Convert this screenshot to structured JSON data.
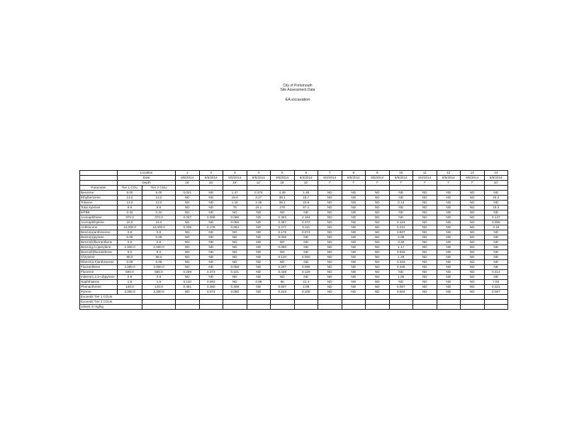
{
  "header": {
    "line1": "City of Portsmouth",
    "line2": "Site Assessment Data",
    "line3": "EA excavation"
  },
  "table": {
    "location_label": "Location",
    "date_label": "Date",
    "depth_label": "Depth",
    "locations": [
      "1",
      "2",
      "3",
      "4",
      "5",
      "6",
      "7",
      "8",
      "9",
      "10",
      "11",
      "12",
      "13",
      "14"
    ],
    "dates": [
      "6/5/2014",
      "6/5/2014",
      "6/5/2014",
      "6/5/2014",
      "6/5/2014",
      "6/4/2014",
      "6/4/2014",
      "6/5/2014",
      "6/5/2014",
      "6/5/2014",
      "6/4/2014",
      "6/5/2014",
      "6/5/2014",
      "6/5/2014"
    ],
    "depths": [
      "15'",
      "15'",
      "15'",
      "12'",
      "15'",
      "15'",
      "7'",
      "7'",
      "7'",
      "7'",
      "7'",
      "7'",
      "7'",
      "10'"
    ],
    "col_headers": [
      "Parameter",
      "Tier 1 CGU",
      "Tier 2 CGU"
    ],
    "rows": [
      {
        "param": "Benzene",
        "t1": "5.00",
        "t2": "5.00",
        "v": [
          "0.021",
          "ND",
          "1.47",
          "0.376",
          "4.39",
          "1.46",
          "ND",
          "ND",
          "ND",
          "ND",
          "ND",
          "ND",
          "ND",
          "ND"
        ]
      },
      {
        "param": "Ethylbenzene",
        "t1": "13.0",
        "t2": "13.0",
        "v": [
          "ND",
          "ND",
          "15.9",
          "3.27",
          "38.1",
          "18.7",
          "ND",
          "ND",
          "ND",
          "ND",
          "ND",
          "ND",
          "ND",
          "26.2"
        ]
      },
      {
        "param": "Toluene",
        "t1": "13.0",
        "t2": "13.0",
        "v": [
          "ND",
          "ND",
          "1.18",
          "4.38",
          "38.1",
          "20.6",
          "ND",
          "ND",
          "ND",
          "0.13",
          "ND",
          "ND",
          "ND",
          "ND"
        ]
      },
      {
        "param": "Total Xylenes",
        "t1": "8.6",
        "t2": "8.6",
        "v": [
          "ND",
          "ND",
          "78",
          "18.1",
          "276",
          "97.2",
          "ND",
          "ND",
          "ND",
          "ND",
          "ND",
          "ND",
          "ND",
          "16.3"
        ]
      },
      {
        "param": "MTBE",
        "t1": "0.32",
        "t2": "0.32",
        "v": [
          "ND",
          "ND",
          "ND",
          "ND",
          "ND",
          "ND",
          "ND",
          "ND",
          "ND",
          "ND",
          "ND",
          "ND",
          "ND",
          "ND"
        ]
      },
      {
        "param": "Acenaphthene",
        "t1": "370.0",
        "t2": "370.0",
        "v": [
          "0.007",
          "0.008",
          "0.089",
          "ND",
          "0.363",
          "2.164",
          "ND",
          "ND",
          "ND",
          "ND",
          "ND",
          "ND",
          "ND",
          "0.147"
        ]
      },
      {
        "param": "Acenaphthylene",
        "t1": "15.0",
        "t2": "15.0",
        "v": [
          "ND",
          "ND",
          "0.096",
          "ND",
          "0.367",
          "0.372",
          "ND",
          "ND",
          "ND",
          "0.124",
          "ND",
          "ND",
          "ND",
          "0.058"
        ]
      },
      {
        "param": "Anthracene",
        "t1": "12,000.0",
        "t2": "12,000.0",
        "v": [
          "0.005",
          "0.178",
          "0.064",
          "ND",
          "0.277",
          "0.111",
          "ND",
          "ND",
          "ND",
          "0.231",
          "ND",
          "ND",
          "ND",
          "3.15"
        ]
      },
      {
        "param": "Benzo(a)anthracene",
        "t1": "0.8",
        "t2": "0.8",
        "v": [
          "ND",
          "ND",
          "ND",
          "ND",
          "0.176",
          "0.074",
          "ND",
          "ND",
          "ND",
          "0.837",
          "ND",
          "ND",
          "ND",
          "ND"
        ]
      },
      {
        "param": "Benzo(a)pyrene",
        "t1": "0.09",
        "t2": "0.09",
        "v": [
          "ND",
          "ND",
          "ND",
          "ND",
          "0.036",
          "ND",
          "ND",
          "ND",
          "ND",
          "2.08",
          "ND",
          "ND",
          "ND",
          "ND"
        ]
      },
      {
        "param": "Benzo(b)fluoranthene",
        "t1": "0.9",
        "t2": "0.9",
        "v": [
          "ND",
          "ND",
          "ND",
          "ND",
          "ND",
          "ND",
          "ND",
          "ND",
          "ND",
          "3.48",
          "ND",
          "ND",
          "ND",
          "ND"
        ]
      },
      {
        "param": "Benzo(g,h,i)perylene",
        "t1": "2,300.0",
        "t2": "2,300.0",
        "v": [
          "ND",
          "ND",
          "ND",
          "ND",
          "0.060",
          "ND",
          "ND",
          "ND",
          "ND",
          "1.17",
          "ND",
          "ND",
          "ND",
          "ND"
        ]
      },
      {
        "param": "Benzo(k)fluoranthene",
        "t1": "9.0",
        "t2": "9.0",
        "v": [
          "ND",
          "ND",
          "ND",
          "ND",
          "ND",
          "ND",
          "ND",
          "ND",
          "ND",
          "0.832",
          "ND",
          "ND",
          "ND",
          "ND"
        ]
      },
      {
        "param": "Chrysene",
        "t1": "88.0",
        "t2": "88.0",
        "v": [
          "ND",
          "ND",
          "ND",
          "ND",
          "0.120",
          "0.050",
          "ND",
          "ND",
          "ND",
          "1.28",
          "ND",
          "ND",
          "ND",
          "ND"
        ]
      },
      {
        "param": "Dibenz(a,h)anthracene",
        "t1": "0.08",
        "t2": "0.08",
        "v": [
          "ND",
          "ND",
          "ND",
          "ND",
          "ND",
          "ND",
          "ND",
          "ND",
          "ND",
          "0.333",
          "ND",
          "ND",
          "ND",
          "ND"
        ]
      },
      {
        "param": "Fluoranthene",
        "t1": "4,300.0",
        "t2": "4,300.0",
        "v": [
          "ND",
          "ND",
          "0.058",
          "ND",
          "0.207",
          "0.098",
          "ND",
          "ND",
          "ND",
          "0.346",
          "ND",
          "ND",
          "ND",
          "ND"
        ]
      },
      {
        "param": "Fluorene",
        "t1": "560.0",
        "t2": "560.0",
        "v": [
          "0.209",
          "0.273",
          "0.101",
          "ND",
          "0.429",
          "0.129",
          "ND",
          "ND",
          "ND",
          "ND",
          "ND",
          "ND",
          "ND",
          "0.414"
        ]
      },
      {
        "param": "Indeno(1,2,3-cd)pyrene",
        "t1": "0.9",
        "t2": "0.9",
        "v": [
          "ND",
          "ND",
          "ND",
          "ND",
          "ND",
          "ND",
          "ND",
          "ND",
          "ND",
          "1.06",
          "ND",
          "ND",
          "ND",
          "ND"
        ]
      },
      {
        "param": "Naphthalene",
        "t1": "1.6",
        "t2": "1.6",
        "v": [
          "0.110",
          "0.063",
          "ND",
          "3.98",
          "66",
          "21.4",
          "ND",
          "ND",
          "ND",
          "ND",
          "ND",
          "ND",
          "ND",
          "7.83"
        ]
      },
      {
        "param": "Phenanthrene",
        "t1": "140.0",
        "t2": "140.0",
        "v": [
          "0.451",
          "0.360",
          "0.308",
          "ND",
          "0.837",
          "2.09",
          "ND",
          "ND",
          "ND",
          "0.097",
          "ND",
          "ND",
          "ND",
          "0.321"
        ]
      },
      {
        "param": "Pyrene",
        "t1": "3,300.0",
        "t2": "3,300.0",
        "v": [
          "ND",
          "0.074",
          "0.080",
          "ND",
          "0.243",
          "0.108",
          "ND",
          "ND",
          "ND",
          "0.504",
          "ND",
          "ND",
          "ND",
          "0.067"
        ]
      }
    ],
    "footer": [
      "Exceeds Tier 1 CGUs",
      "Exceeds Tier 2 CGUs",
      "values in mg/kg"
    ]
  }
}
